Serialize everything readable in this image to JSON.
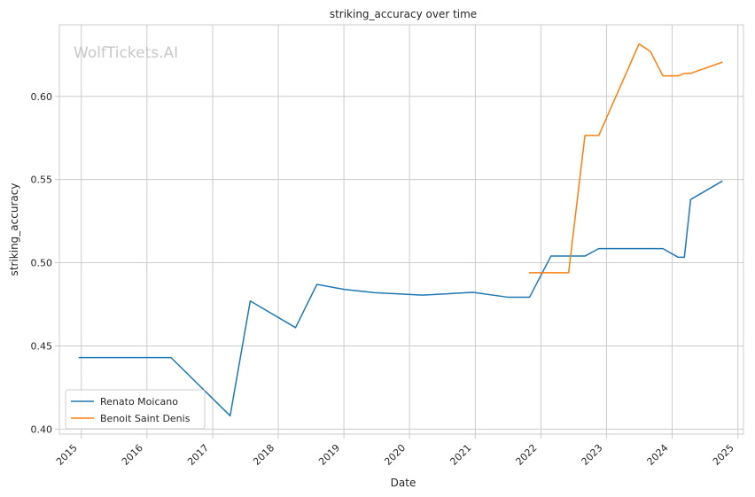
{
  "chart_data": {
    "type": "line",
    "title": "striking_accuracy over time",
    "xlabel": "Date",
    "ylabel": "striking_accuracy",
    "watermark": "WolfTickets.AI",
    "xlim": [
      "2014-09-01",
      "2025-02-01"
    ],
    "ylim": [
      0.397,
      0.643
    ],
    "x_ticks": [
      "2015",
      "2016",
      "2017",
      "2018",
      "2019",
      "2020",
      "2021",
      "2022",
      "2023",
      "2024",
      "2025"
    ],
    "y_ticks": [
      "0.40",
      "0.45",
      "0.50",
      "0.55",
      "0.60"
    ],
    "grid": true,
    "legend_position": "lower-left",
    "series": [
      {
        "name": "Renato Moicano",
        "color": "#1f77b4",
        "points": [
          {
            "x": "2014-12-20",
            "y": 0.443
          },
          {
            "x": "2016-05-14",
            "y": 0.443
          },
          {
            "x": "2017-04-08",
            "y": 0.408
          },
          {
            "x": "2017-07-29",
            "y": 0.477
          },
          {
            "x": "2018-04-07",
            "y": 0.461
          },
          {
            "x": "2018-08-04",
            "y": 0.487
          },
          {
            "x": "2019-01-01",
            "y": 0.484
          },
          {
            "x": "2019-06-22",
            "y": 0.482
          },
          {
            "x": "2020-03-14",
            "y": 0.4805
          },
          {
            "x": "2020-12-19",
            "y": 0.4822
          },
          {
            "x": "2021-07-01",
            "y": 0.4793
          },
          {
            "x": "2021-10-30",
            "y": 0.4793
          },
          {
            "x": "2022-02-26",
            "y": 0.504
          },
          {
            "x": "2022-09-03",
            "y": 0.504
          },
          {
            "x": "2022-11-19",
            "y": 0.5085
          },
          {
            "x": "2023-11-11",
            "y": 0.5085
          },
          {
            "x": "2024-02-03",
            "y": 0.5033
          },
          {
            "x": "2024-03-09",
            "y": 0.5033
          },
          {
            "x": "2024-04-13",
            "y": 0.538
          },
          {
            "x": "2024-10-05",
            "y": 0.549
          }
        ]
      },
      {
        "name": "Benoit Saint Denis",
        "color": "#ff7f0e",
        "points": [
          {
            "x": "2021-10-30",
            "y": 0.494
          },
          {
            "x": "2022-06-04",
            "y": 0.494
          },
          {
            "x": "2022-09-03",
            "y": 0.5765
          },
          {
            "x": "2022-11-19",
            "y": 0.5765
          },
          {
            "x": "2023-07-01",
            "y": 0.6315
          },
          {
            "x": "2023-09-02",
            "y": 0.627
          },
          {
            "x": "2023-11-11",
            "y": 0.6123
          },
          {
            "x": "2024-02-03",
            "y": 0.6123
          },
          {
            "x": "2024-03-09",
            "y": 0.6138
          },
          {
            "x": "2024-04-13",
            "y": 0.6138
          },
          {
            "x": "2024-10-05",
            "y": 0.6205
          }
        ]
      }
    ]
  }
}
